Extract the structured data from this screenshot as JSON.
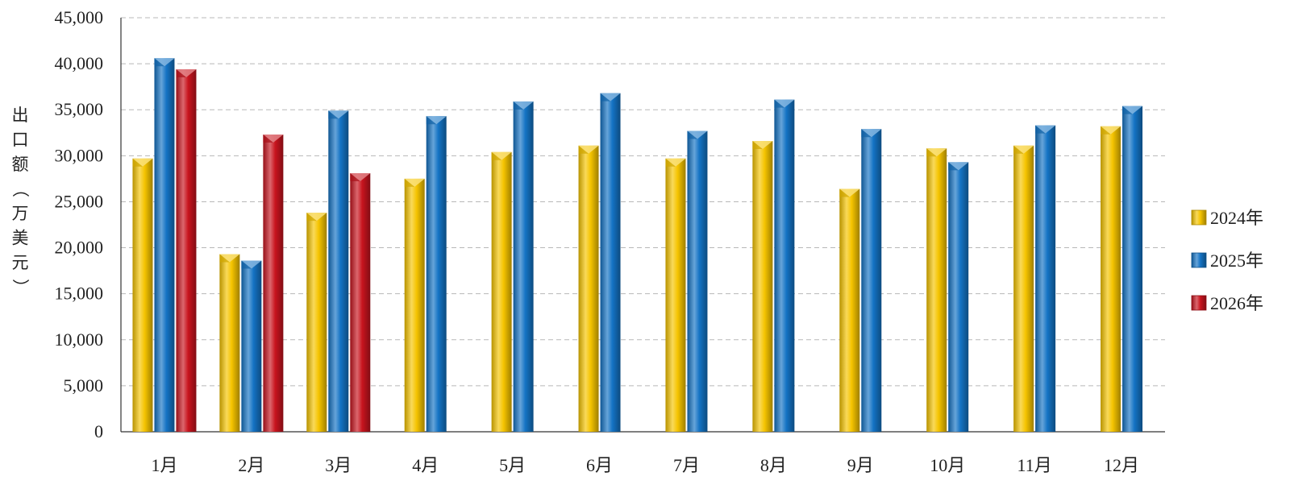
{
  "chart_data": {
    "type": "bar",
    "title": "",
    "xlabel": "",
    "ylabel": "出口额（万美元）",
    "ylim": [
      0,
      45000
    ],
    "yticks": [
      0,
      5000,
      10000,
      15000,
      20000,
      25000,
      30000,
      35000,
      40000,
      45000
    ],
    "ytick_labels": [
      "0",
      "5,000",
      "10,000",
      "15,000",
      "20,000",
      "25,000",
      "30,000",
      "35,000",
      "40,000",
      "45,000"
    ],
    "grid": true,
    "legend_position": "right",
    "categories": [
      "1月",
      "2月",
      "3月",
      "4月",
      "5月",
      "6月",
      "7月",
      "8月",
      "9月",
      "10月",
      "11月",
      "12月"
    ],
    "series": [
      {
        "name": "2024年",
        "color": "#f5c400",
        "values": [
          29700,
          19300,
          23800,
          27500,
          30400,
          31100,
          29700,
          31600,
          26400,
          30800,
          31100,
          33200
        ]
      },
      {
        "name": "2025年",
        "color": "#1473c4",
        "values": [
          40600,
          18600,
          34900,
          34300,
          35900,
          36800,
          32700,
          36100,
          32900,
          29300,
          33300,
          35400
        ]
      },
      {
        "name": "2026年",
        "color": "#c8141e",
        "values": [
          39400,
          32300,
          28100,
          null,
          null,
          null,
          null,
          null,
          null,
          null,
          null,
          null
        ]
      }
    ]
  }
}
